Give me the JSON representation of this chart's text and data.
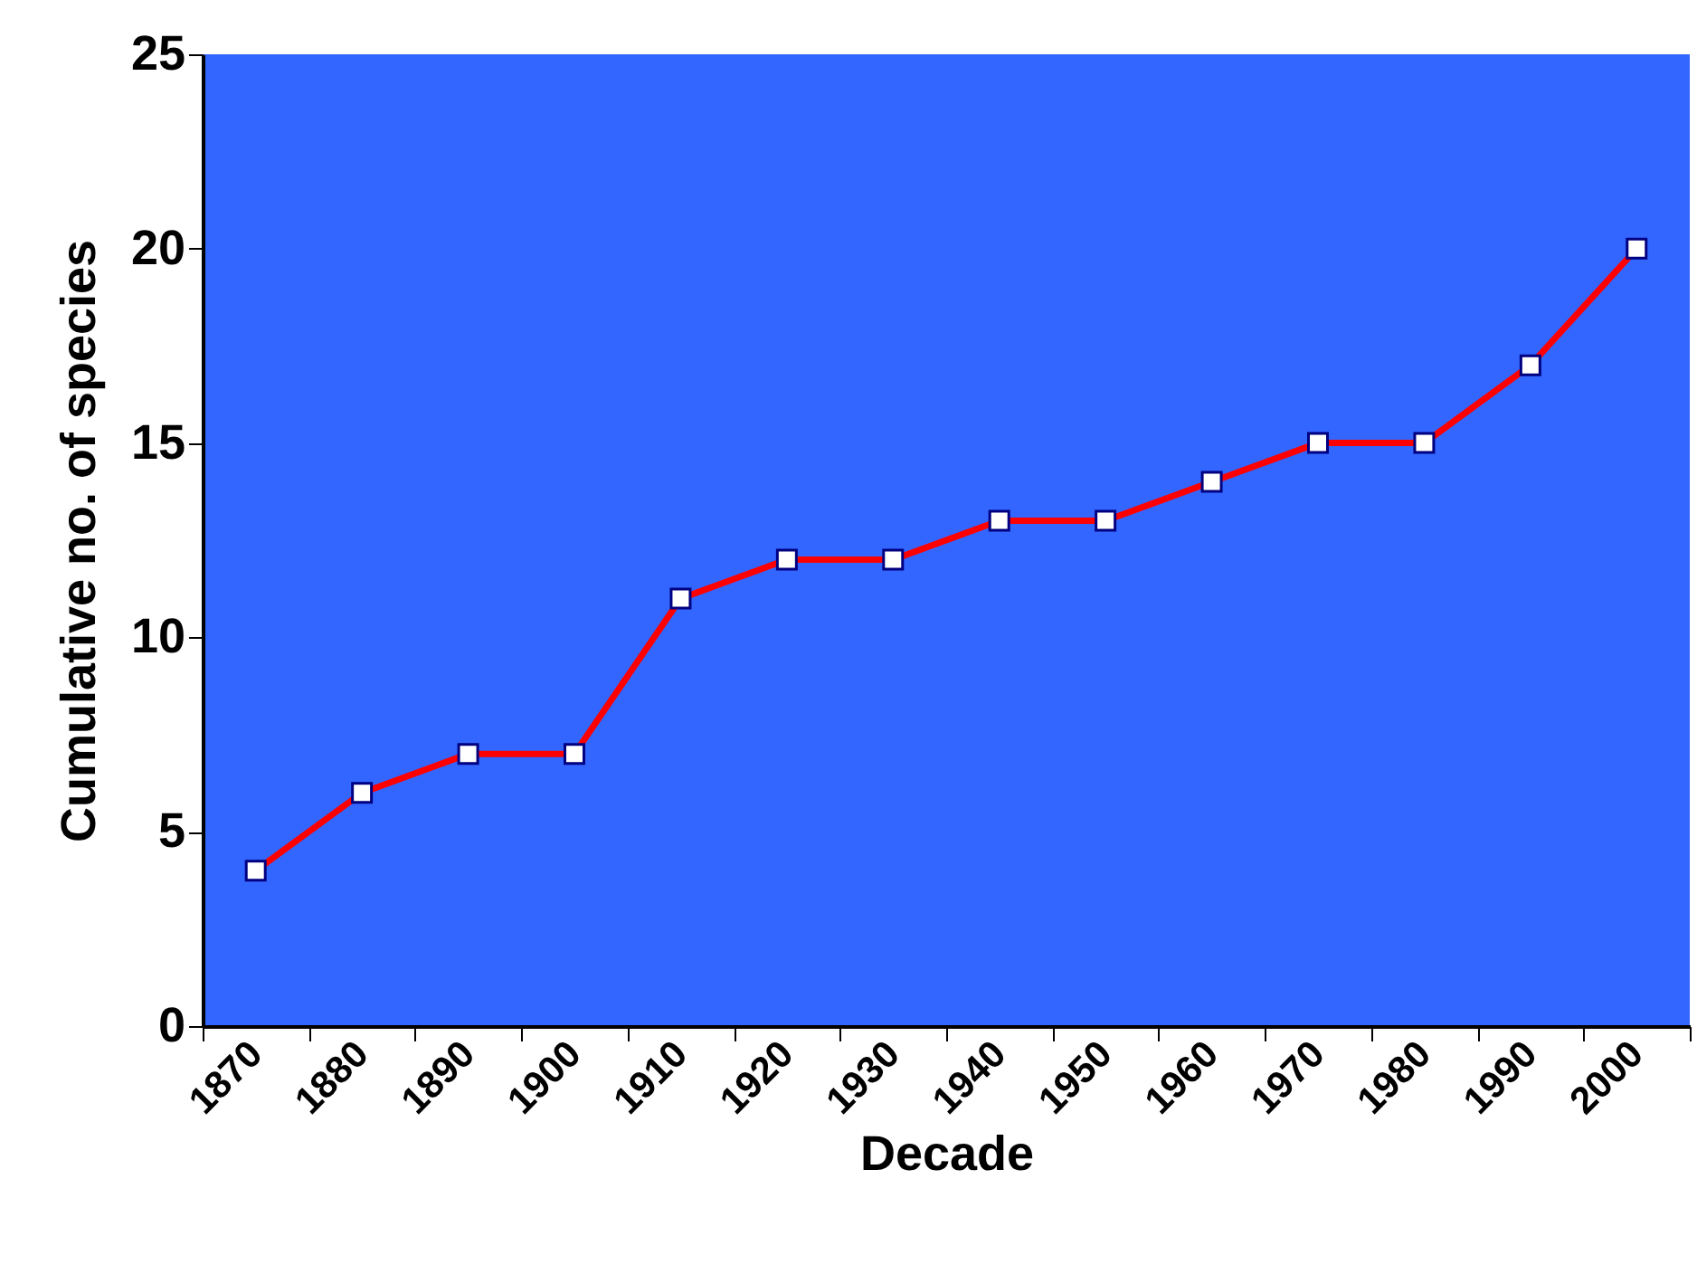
{
  "chart_data": {
    "type": "line",
    "xlabel": "Decade",
    "ylabel": "Cumulative no. of species",
    "categories": [
      "1870",
      "1880",
      "1890",
      "1900",
      "1910",
      "1920",
      "1930",
      "1940",
      "1950",
      "1960",
      "1970",
      "1980",
      "1990",
      "2000"
    ],
    "series": [
      {
        "color": "#ff0000",
        "values": [
          4,
          6,
          7,
          7,
          11,
          12,
          12,
          13,
          13,
          14,
          15,
          15,
          17,
          20
        ]
      }
    ],
    "ylim": [
      0,
      25
    ],
    "yticks": [
      0,
      5,
      10,
      15,
      20,
      25
    ],
    "grid": false,
    "legend": false,
    "marker": "square",
    "line_style": "solid"
  }
}
